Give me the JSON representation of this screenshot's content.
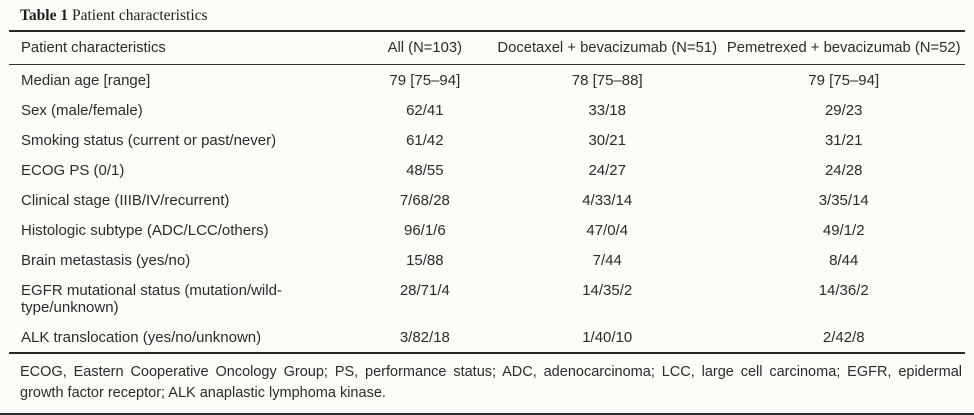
{
  "table": {
    "title_bold": "Table 1",
    "title_rest": "Patient characteristics",
    "columns": [
      "Patient characteristics",
      "All (N=103)",
      "Docetaxel + bevacizumab (N=51)",
      "Pemetrexed + bevacizumab (N=52)"
    ],
    "rows": [
      {
        "label": "Median age [range]",
        "all": "79 [75–94]",
        "docetaxel": "78 [75–88]",
        "pemetrexed": "79 [75–94]"
      },
      {
        "label": "Sex (male/female)",
        "all": "62/41",
        "docetaxel": "33/18",
        "pemetrexed": "29/23"
      },
      {
        "label": "Smoking status (current or past/never)",
        "all": "61/42",
        "docetaxel": "30/21",
        "pemetrexed": "31/21"
      },
      {
        "label": "ECOG PS (0/1)",
        "all": "48/55",
        "docetaxel": "24/27",
        "pemetrexed": "24/28"
      },
      {
        "label": "Clinical stage (IIIB/IV/recurrent)",
        "all": "7/68/28",
        "docetaxel": "4/33/14",
        "pemetrexed": "3/35/14"
      },
      {
        "label": "Histologic subtype (ADC/LCC/others)",
        "all": "96/1/6",
        "docetaxel": "47/0/4",
        "pemetrexed": "49/1/2"
      },
      {
        "label": "Brain metastasis (yes/no)",
        "all": "15/88",
        "docetaxel": "7/44",
        "pemetrexed": "8/44"
      },
      {
        "label": "EGFR mutational status (mutation/wild-type/unknown)",
        "all": "28/71/4",
        "docetaxel": "14/35/2",
        "pemetrexed": "14/36/2"
      },
      {
        "label": "ALK translocation (yes/no/unknown)",
        "all": "3/82/18",
        "docetaxel": "1/40/10",
        "pemetrexed": "2/42/8"
      }
    ],
    "footnote": "ECOG, Eastern Cooperative Oncology Group; PS, performance status; ADC, adenocarcinoma; LCC, large cell carcinoma; EGFR, epidermal growth factor receptor; ALK anaplastic lymphoma kinase."
  },
  "colors": {
    "background": "#fbfbf8",
    "text": "#2c2c2c",
    "rule": "#262626"
  }
}
